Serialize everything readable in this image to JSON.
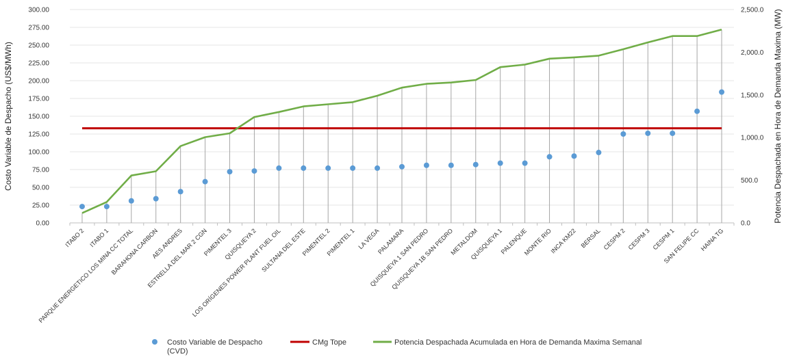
{
  "chart_data": {
    "type": "line",
    "categories": [
      "ITABO 2",
      "ITABO 1",
      "PARQUE ENERGETICO LOS MINA CC TOTAL",
      "BARAHONA CARBON",
      "AES ANDRES",
      "ESTRELLA DEL MAR 2 CGN",
      "PIMENTEL 3",
      "QUISQUEYA 2",
      "LOS ORÍGENES POWER PLANT FUEL OIL",
      "SULTANA DEL ESTE",
      "PIMENTEL 2",
      "PIMENTEL 1",
      "LA VEGA",
      "PALAMARA",
      "QUISQUEYA 1 SAN PEDRO",
      "QUISQUEYA 1B SAN PEDRO",
      "METALDOM",
      "QUISQUEYA 1",
      "PALENQUE",
      "MONTE RIO",
      "INCA KM22",
      "BERSAL",
      "CESPM 2",
      "CESPM 3",
      "CESPM 1",
      "SAN FELIPE CC",
      "HAINA TG"
    ],
    "xlabel": "",
    "ylabel": "Costo Variable de Despacho (US$/MWh)",
    "ylabel_right": "Potencia Despachada en Hora de Demanda Maxima (MW)",
    "ylim": [
      0,
      300
    ],
    "ylim_right": [
      0,
      2500
    ],
    "yticks": [
      "0.00",
      "25.00",
      "50.00",
      "75.00",
      "100.00",
      "125.00",
      "150.00",
      "175.00",
      "200.00",
      "225.00",
      "250.00",
      "275.00",
      "300.00"
    ],
    "yticks_right": [
      "0.0",
      "500.0",
      "1,000.0",
      "1,500.0",
      "2,000.0",
      "2,500.0"
    ],
    "grid": true,
    "legend_position": "bottom",
    "series": [
      {
        "name": "Costo Variable de Despacho (CVD)",
        "type": "scatter",
        "axis": "left",
        "color": "#5b9bd5",
        "values": [
          23,
          23,
          31,
          34,
          44,
          58,
          72,
          73,
          77,
          77,
          77,
          77,
          77,
          79,
          81,
          81,
          82,
          84,
          84,
          93,
          94,
          99,
          125,
          126,
          126,
          157,
          184
        ]
      },
      {
        "name": "CMg Tope",
        "type": "line",
        "axis": "left",
        "color": "#c00000",
        "values": [
          133,
          133,
          133,
          133,
          133,
          133,
          133,
          133,
          133,
          133,
          133,
          133,
          133,
          133,
          133,
          133,
          133,
          133,
          133,
          133,
          133,
          133,
          133,
          133,
          133,
          133,
          133
        ]
      },
      {
        "name": "Potencia Despachada Acumulada en Hora de Demanda Maxima Semanal",
        "type": "line",
        "axis": "right",
        "color": "#70ad47",
        "values": [
          115,
          245,
          555,
          605,
          900,
          1005,
          1050,
          1240,
          1300,
          1365,
          1390,
          1415,
          1490,
          1585,
          1630,
          1645,
          1675,
          1825,
          1855,
          1925,
          1940,
          1960,
          2035,
          2115,
          2190,
          2190,
          2265
        ]
      }
    ]
  }
}
